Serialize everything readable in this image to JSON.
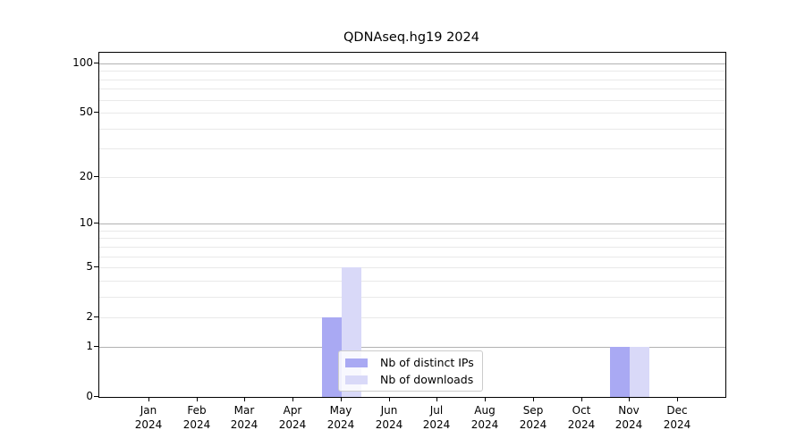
{
  "title": "QDNAseq.hg19 2024",
  "chart_data": {
    "type": "bar",
    "title": "QDNAseq.hg19 2024",
    "categories": [
      "Jan",
      "Feb",
      "Mar",
      "Apr",
      "May",
      "Jun",
      "Jul",
      "Aug",
      "Sep",
      "Oct",
      "Nov",
      "Dec"
    ],
    "year": "2024",
    "series": [
      {
        "name": "Nb of distinct IPs",
        "color": "#a9a9f3",
        "values": [
          0,
          0,
          0,
          0,
          2,
          0,
          0,
          0,
          0,
          0,
          1,
          0
        ]
      },
      {
        "name": "Nb of downloads",
        "color": "#d9d9f8",
        "values": [
          0,
          0,
          0,
          0,
          5,
          0,
          0,
          0,
          0,
          0,
          1,
          0
        ]
      }
    ],
    "yticks": [
      0,
      1,
      2,
      5,
      10,
      20,
      50,
      100
    ],
    "major_gridlines": [
      1,
      10,
      100
    ],
    "minor_gridlines": [
      2,
      3,
      4,
      5,
      6,
      7,
      8,
      9,
      20,
      30,
      40,
      50,
      60,
      70,
      80,
      90
    ],
    "ylim": [
      0,
      100
    ],
    "yscale": "log1p",
    "xlabel": "",
    "ylabel": "",
    "grid": "both",
    "legend_position": "bottom-center-inside"
  },
  "colors": {
    "distinct_ips_bar": "#a9a9f3",
    "downloads_bar": "#d9d9f8",
    "major_grid": "#b2b2b2",
    "minor_grid": "#e9e9e9",
    "axis": "#000000",
    "legend_border": "#cccccc",
    "background": "#ffffff"
  }
}
